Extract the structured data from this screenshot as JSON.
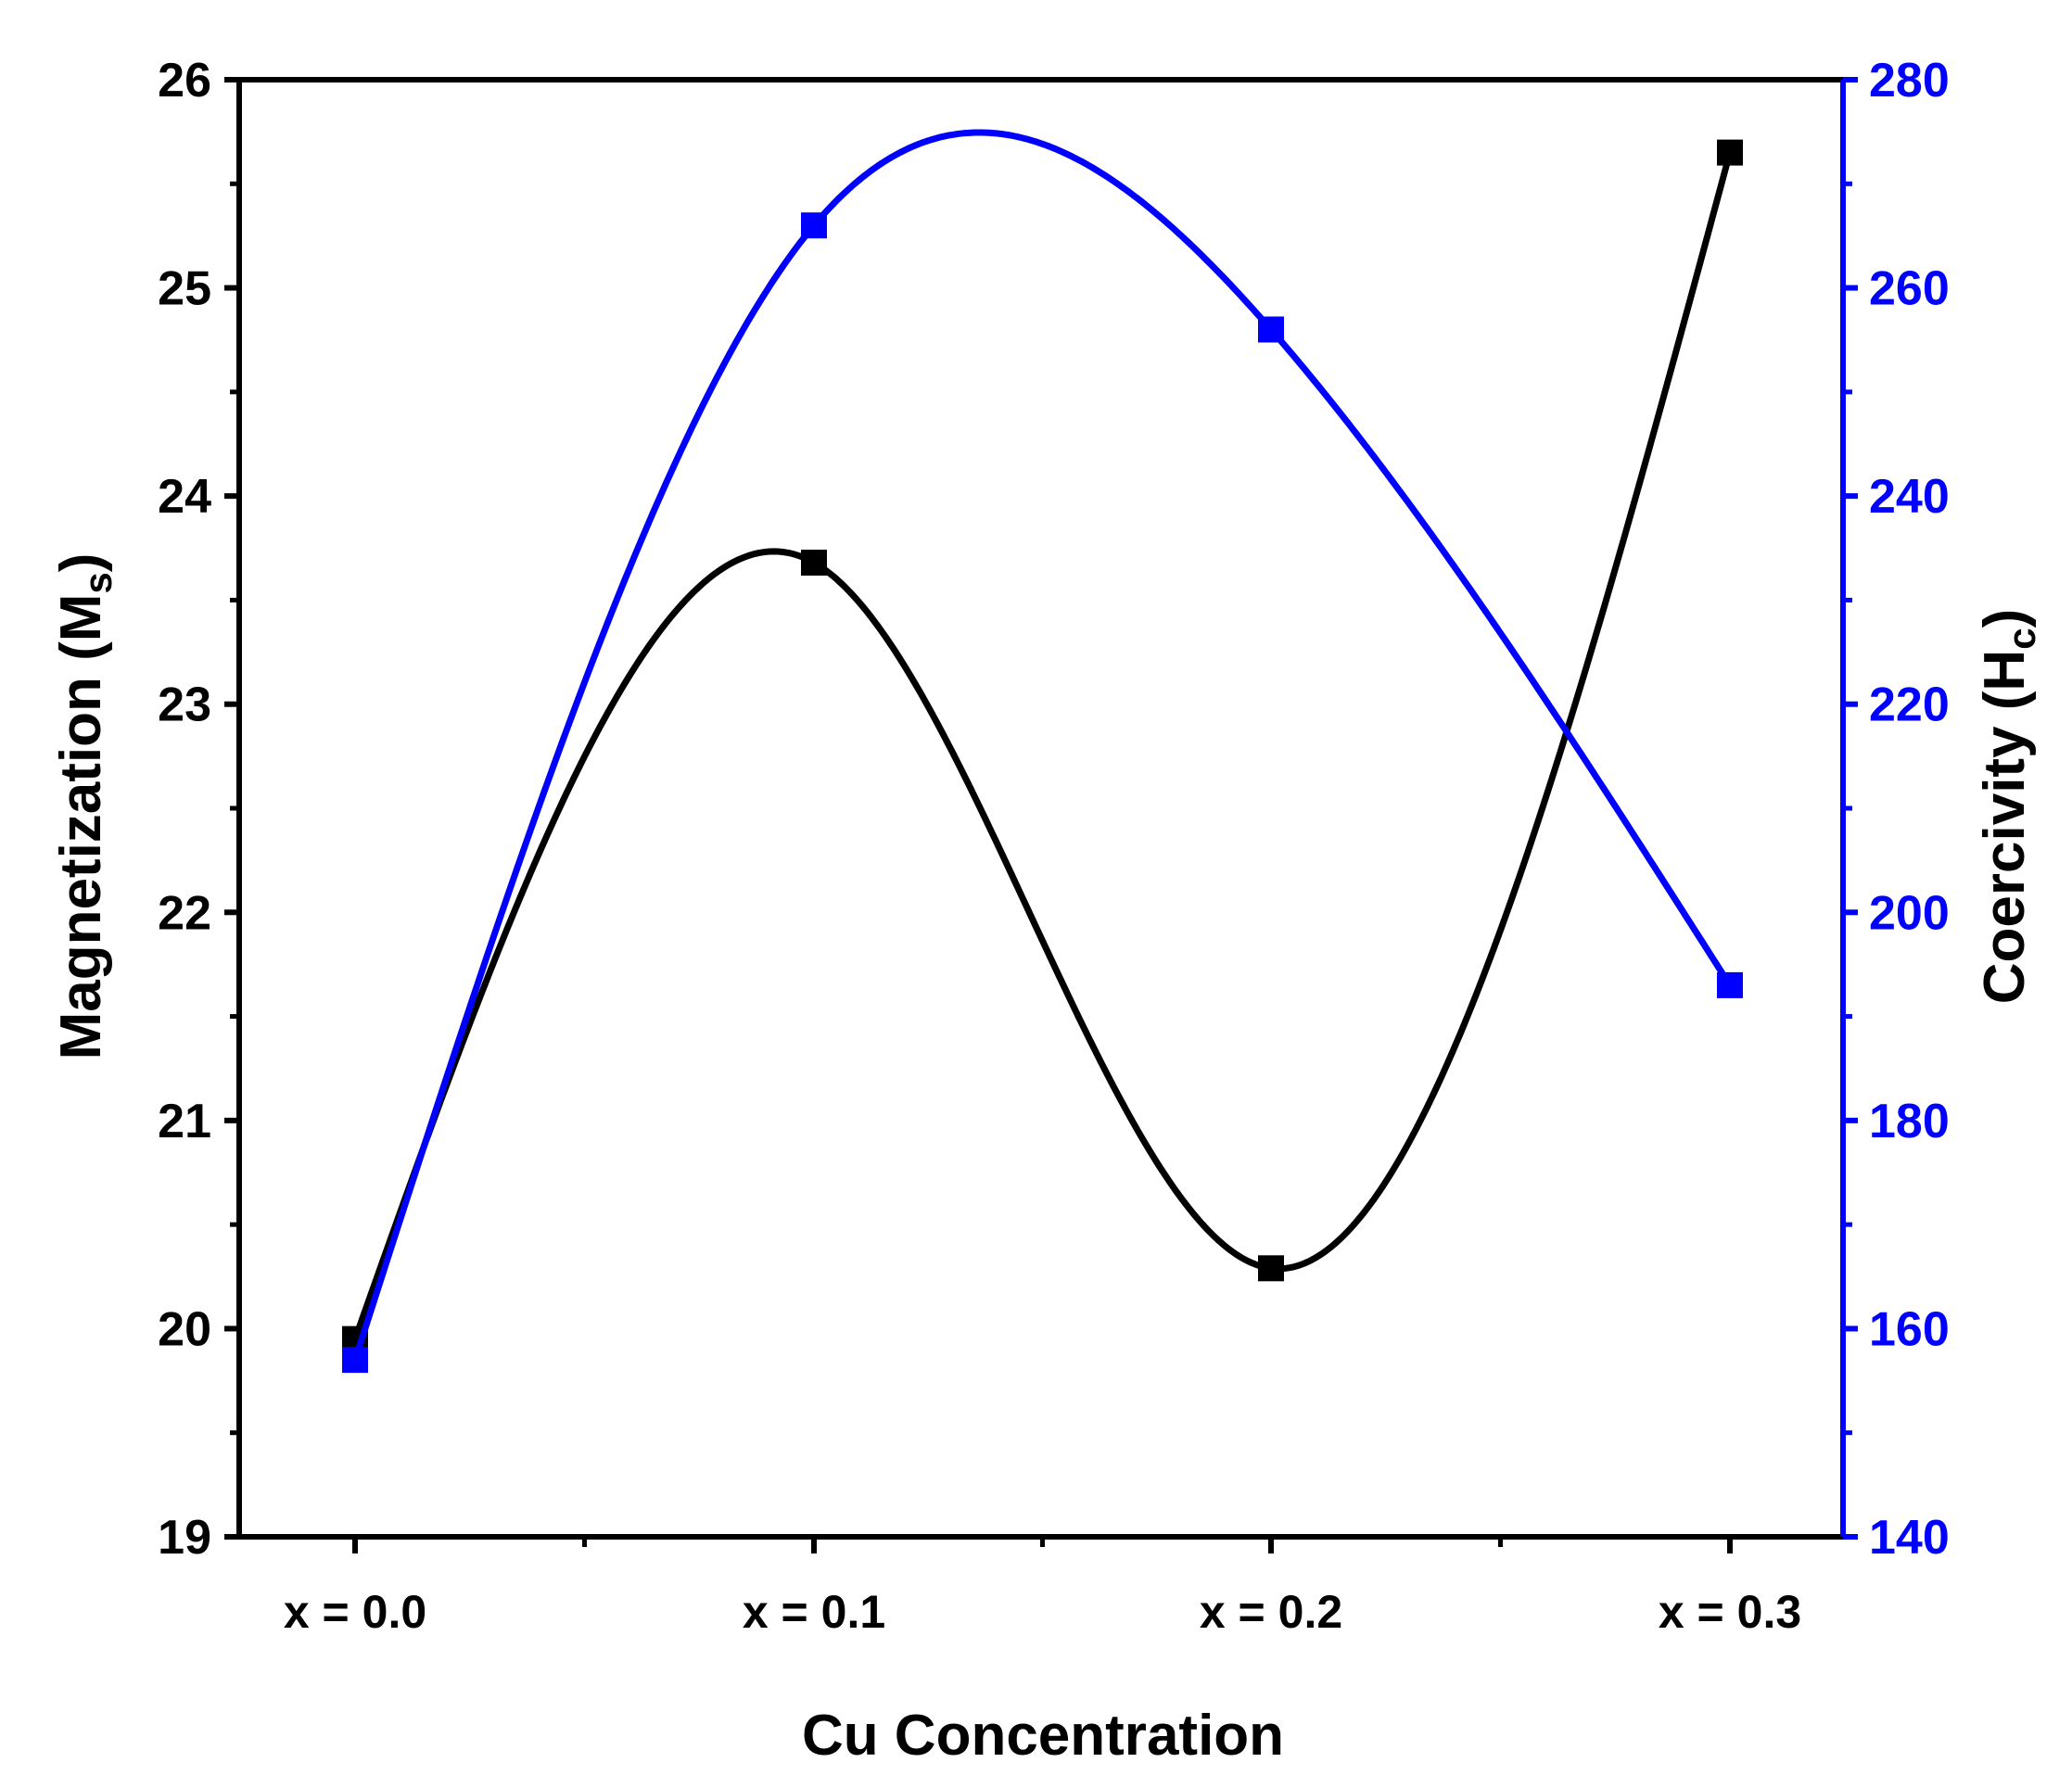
{
  "chart_data": {
    "type": "line",
    "xlabel": "Cu Concentration",
    "categories": [
      "x = 0.0",
      "x = 0.1",
      "x = 0.2",
      "x = 0.3"
    ],
    "y_left": {
      "label_main": "Magnetization (M",
      "label_sub": "s",
      "label_close": ")",
      "ylim": [
        19,
        26
      ],
      "ticks": [
        "19",
        "20",
        "21",
        "22",
        "23",
        "24",
        "25",
        "26"
      ],
      "color": "#000000"
    },
    "y_right": {
      "label_main": "Coercivity (H",
      "label_sub": "c",
      "label_close": ")",
      "ylim": [
        140,
        280
      ],
      "ticks": [
        "140",
        "160",
        "180",
        "200",
        "220",
        "240",
        "260",
        "280"
      ],
      "color": "#0000ff"
    },
    "series": [
      {
        "axis": "left",
        "color": "#000000",
        "values": [
          19.95,
          23.68,
          20.29,
          25.65
        ]
      },
      {
        "axis": "right",
        "color": "#0000ff",
        "values": [
          157,
          266,
          256,
          193
        ]
      }
    ],
    "grid": false,
    "smooth": true,
    "marker": "square"
  }
}
